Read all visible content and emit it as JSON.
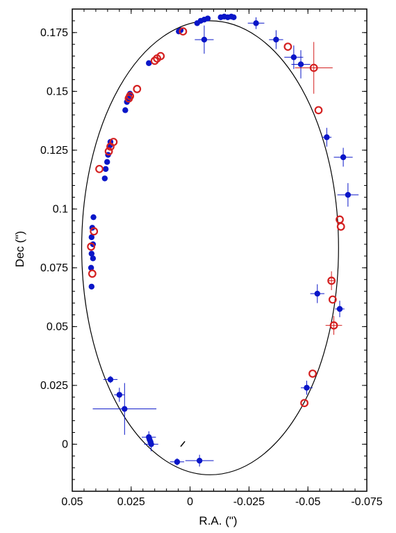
{
  "chart_data": {
    "type": "scatter",
    "title": "",
    "xlabel": "R.A. (\")",
    "ylabel": "Dec (\")",
    "xlim": [
      0.05,
      -0.075
    ],
    "ylim": [
      -0.02,
      0.185
    ],
    "x_ticks": [
      0.05,
      0.025,
      0,
      -0.025,
      -0.05,
      -0.075
    ],
    "x_tick_labels": [
      "0.05",
      "0.025",
      "0",
      "-0.025",
      "-0.05",
      "-0.075"
    ],
    "y_ticks": [
      0,
      0.025,
      0.05,
      0.075,
      0.1,
      0.125,
      0.15,
      0.175
    ],
    "y_tick_labels": [
      "0",
      "0.025",
      "0.05",
      "0.075",
      "0.1",
      "0.125",
      "0.15",
      "0.175"
    ],
    "grid": false,
    "legend": "none",
    "colors": {
      "series_blue": "#0a16c8",
      "series_red": "#d42020",
      "orbit": "#000000"
    },
    "orbit": {
      "center_x": -0.0085,
      "center_y": 0.0835,
      "semi_axis_x": 0.0545,
      "semi_axis_y": 0.0965
    },
    "series": [
      {
        "marker": "filled-circle",
        "color": "#0a16c8",
        "points": [
          {
            "x": 0.041,
            "y": 0.0965
          },
          {
            "x": 0.0415,
            "y": 0.092
          },
          {
            "x": 0.0418,
            "y": 0.088
          },
          {
            "x": 0.0412,
            "y": 0.085
          },
          {
            "x": 0.0418,
            "y": 0.081
          },
          {
            "x": 0.0412,
            "y": 0.079
          },
          {
            "x": 0.042,
            "y": 0.075
          },
          {
            "x": 0.0418,
            "y": 0.067
          },
          {
            "x": 0.0362,
            "y": 0.113
          },
          {
            "x": 0.0358,
            "y": 0.117
          },
          {
            "x": 0.0352,
            "y": 0.12
          },
          {
            "x": 0.0348,
            "y": 0.123
          },
          {
            "x": 0.034,
            "y": 0.127
          },
          {
            "x": 0.0338,
            "y": 0.1285
          },
          {
            "x": 0.0275,
            "y": 0.142
          },
          {
            "x": 0.0268,
            "y": 0.1455
          },
          {
            "x": 0.0262,
            "y": 0.147
          },
          {
            "x": 0.0255,
            "y": 0.149
          },
          {
            "x": 0.0175,
            "y": 0.162
          },
          {
            "x": 0.0048,
            "y": 0.1755
          },
          {
            "x": 0.004,
            "y": 0.176
          },
          {
            "x": -0.003,
            "y": 0.179
          },
          {
            "x": -0.0045,
            "y": 0.18
          },
          {
            "x": -0.006,
            "y": 0.1805
          },
          {
            "x": -0.0075,
            "y": 0.181
          },
          {
            "x": -0.013,
            "y": 0.1815
          },
          {
            "x": -0.0145,
            "y": 0.1818
          },
          {
            "x": -0.016,
            "y": 0.1815
          },
          {
            "x": -0.0175,
            "y": 0.1818
          },
          {
            "x": -0.0185,
            "y": 0.1815
          },
          {
            "x": -0.028,
            "y": 0.179
          },
          {
            "x": -0.006,
            "y": 0.172
          },
          {
            "x": -0.0365,
            "y": 0.172
          },
          {
            "x": -0.044,
            "y": 0.1645
          },
          {
            "x": -0.047,
            "y": 0.1615
          },
          {
            "x": -0.058,
            "y": 0.1305
          },
          {
            "x": -0.065,
            "y": 0.122
          },
          {
            "x": -0.067,
            "y": 0.106
          },
          {
            "x": -0.054,
            "y": 0.064
          },
          {
            "x": -0.0635,
            "y": 0.0575
          },
          {
            "x": -0.0495,
            "y": 0.024
          },
          {
            "x": 0.0338,
            "y": 0.0275
          },
          {
            "x": 0.03,
            "y": 0.021
          },
          {
            "x": 0.0278,
            "y": 0.015
          },
          {
            "x": 0.0175,
            "y": 0.003
          },
          {
            "x": 0.0172,
            "y": 0.002
          },
          {
            "x": 0.0168,
            "y": 0.001
          },
          {
            "x": 0.0165,
            "y": 0.0
          },
          {
            "x": 0.0055,
            "y": -0.0075
          },
          {
            "x": -0.004,
            "y": -0.007
          }
        ]
      },
      {
        "marker": "open-circle",
        "color": "#d42020",
        "points": [
          {
            "x": 0.0408,
            "y": 0.0905
          },
          {
            "x": 0.042,
            "y": 0.084
          },
          {
            "x": 0.0415,
            "y": 0.0725
          },
          {
            "x": 0.0385,
            "y": 0.117
          },
          {
            "x": 0.0345,
            "y": 0.1245
          },
          {
            "x": 0.0338,
            "y": 0.1265
          },
          {
            "x": 0.0325,
            "y": 0.1285
          },
          {
            "x": 0.026,
            "y": 0.147
          },
          {
            "x": 0.0255,
            "y": 0.148
          },
          {
            "x": 0.0225,
            "y": 0.151
          },
          {
            "x": 0.015,
            "y": 0.163
          },
          {
            "x": 0.014,
            "y": 0.164
          },
          {
            "x": 0.0125,
            "y": 0.165
          },
          {
            "x": 0.003,
            "y": 0.1755
          },
          {
            "x": -0.0415,
            "y": 0.169
          },
          {
            "x": -0.0525,
            "y": 0.16
          },
          {
            "x": -0.0545,
            "y": 0.142
          },
          {
            "x": -0.0635,
            "y": 0.0955
          },
          {
            "x": -0.064,
            "y": 0.0925
          },
          {
            "x": -0.06,
            "y": 0.0695
          },
          {
            "x": -0.0605,
            "y": 0.0615
          },
          {
            "x": -0.061,
            "y": 0.0505
          },
          {
            "x": -0.052,
            "y": 0.03
          },
          {
            "x": -0.0485,
            "y": 0.0175
          }
        ]
      }
    ]
  }
}
